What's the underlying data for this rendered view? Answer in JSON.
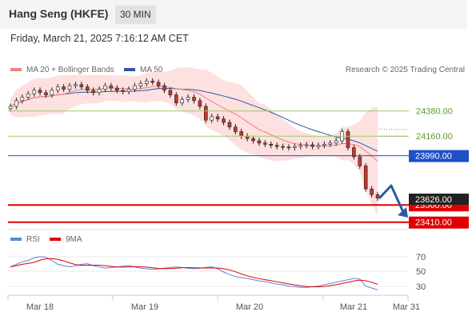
{
  "header": {
    "title": "Hang Seng (HKFE)",
    "timeframe": "30 MIN"
  },
  "datetime": "Friday, March 21, 2025 7:16:12 AM CET",
  "legend": {
    "ma20": "MA 20 + Bollinger Bands",
    "ma50": "MA 50",
    "credit": "Research © 2025 Trading Central",
    "rsi": "RSI",
    "ma9": "9MA"
  },
  "colors": {
    "ma20": "#f08080",
    "ma50": "#2d5aa0",
    "bollinger_fill": "#fde0e0",
    "support_red": "#e00000",
    "pivot_blue": "#1e50c8",
    "resistance_green": "#9ccc65",
    "arrow": "#2d5aa0",
    "rsi_line": "#5b86e0",
    "rsi_ma": "#e00000"
  },
  "chart_data": [
    {
      "type": "candlestick",
      "x_ticks": [
        "Mar 18",
        "Mar 19",
        "Mar 20",
        "Mar 21",
        "Mar 31"
      ],
      "ylim": [
        23380,
        24650
      ],
      "close_path": [
        24420,
        24470,
        24500,
        24530,
        24560,
        24540,
        24520,
        24560,
        24590,
        24570,
        24600,
        24610,
        24590,
        24560,
        24540,
        24570,
        24600,
        24580,
        24560,
        24550,
        24570,
        24600,
        24620,
        24640,
        24630,
        24600,
        24560,
        24520,
        24450,
        24480,
        24500,
        24470,
        24420,
        24300,
        24330,
        24310,
        24280,
        24240,
        24200,
        24160,
        24140,
        24120,
        24100,
        24090,
        24080,
        24070,
        24065,
        24060,
        24070,
        24080,
        24085,
        24070,
        24080,
        24090,
        24100,
        24120,
        24200,
        24060,
        23980,
        23900,
        23700,
        23650,
        23620
      ],
      "last_price": "23626.00",
      "levels": [
        {
          "value": 24380,
          "label": "24380.00",
          "kind": "resistance"
        },
        {
          "value": 24160,
          "label": "24160.00",
          "kind": "resistance"
        },
        {
          "value": 23990,
          "label": "23990.00",
          "kind": "pivot"
        },
        {
          "value": 23560,
          "label": "23560.00",
          "kind": "support"
        },
        {
          "value": 23410,
          "label": "23410.00",
          "kind": "support"
        }
      ]
    },
    {
      "type": "line",
      "name": "RSI",
      "y_ticks": [
        "70",
        "50",
        "30"
      ],
      "ylim": [
        15,
        85
      ],
      "values": [
        58,
        62,
        66,
        68,
        72,
        74,
        73,
        68,
        62,
        60,
        58,
        60,
        62,
        63,
        60,
        58,
        56,
        57,
        58,
        59,
        60,
        58,
        56,
        55,
        54,
        55,
        56,
        57,
        58,
        57,
        56,
        55,
        56,
        57,
        58,
        55,
        50,
        46,
        43,
        41,
        40,
        38,
        36,
        35,
        33,
        31,
        30,
        28,
        27,
        26,
        26,
        27,
        28,
        30,
        32,
        34,
        36,
        38,
        40,
        39,
        28,
        25,
        22
      ]
    }
  ]
}
